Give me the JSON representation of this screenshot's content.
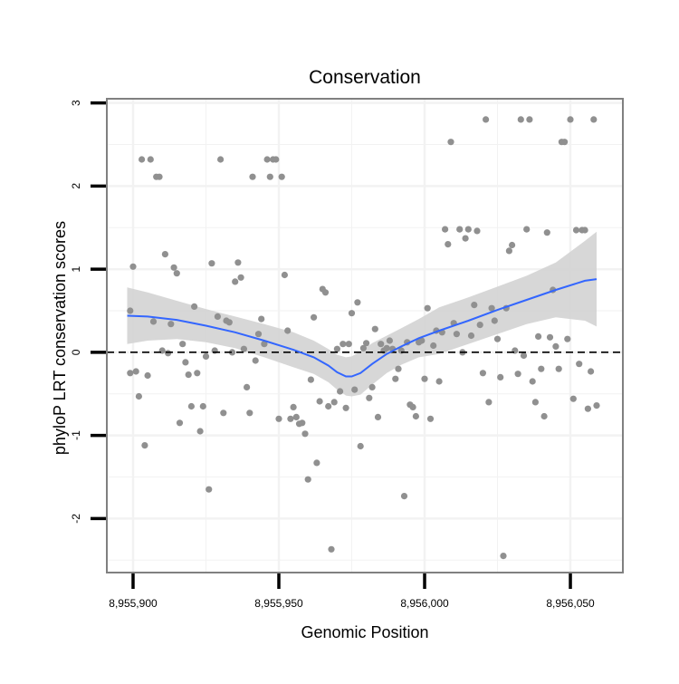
{
  "chart_data": {
    "type": "scatter",
    "title": "Conservation",
    "xlabel": "Genomic Position",
    "ylabel": "phyloP LRT conservation scores",
    "xlim": [
      8955891,
      8956068
    ],
    "ylim": [
      -2.65,
      3.05
    ],
    "x_ticks": [
      {
        "value": 8955900,
        "label": "8,955,900"
      },
      {
        "value": 8955950,
        "label": "8,955,950"
      },
      {
        "value": 8956000,
        "label": "8,956,000"
      },
      {
        "value": 8956050,
        "label": "8,956,050"
      }
    ],
    "y_ticks": [
      {
        "value": -2,
        "label": "-2"
      },
      {
        "value": -1,
        "label": "-1"
      },
      {
        "value": 0,
        "label": "0"
      },
      {
        "value": 1,
        "label": "1"
      },
      {
        "value": 2,
        "label": "2"
      },
      {
        "value": 3,
        "label": "3"
      }
    ],
    "x_minor_grid": [
      8955875,
      8955925,
      8955975,
      8956025,
      8956075
    ],
    "y_minor_grid": [
      -2.5,
      -1.5,
      -0.5,
      0.5,
      1.5,
      2.5
    ],
    "grid": true,
    "reference_line": {
      "y": 0,
      "style": "dashed"
    },
    "colors": {
      "points": "#909090",
      "smooth": "#3366FF",
      "ribbon": "#D3D3D3",
      "panel_border": "#808080",
      "grid": "#F2F2F2",
      "reference_line": "#000000"
    },
    "points": [
      [
        8955899,
        0.5
      ],
      [
        8955899,
        -0.25
      ],
      [
        8955900,
        1.03
      ],
      [
        8955901,
        -0.23
      ],
      [
        8955902,
        -0.53
      ],
      [
        8955903,
        2.32
      ],
      [
        8955904,
        -1.12
      ],
      [
        8955905,
        -0.28
      ],
      [
        8955906,
        2.32
      ],
      [
        8955907,
        0.37
      ],
      [
        8955908,
        2.11
      ],
      [
        8955909,
        2.11
      ],
      [
        8955910,
        0.02
      ],
      [
        8955911,
        1.18
      ],
      [
        8955912,
        -0.01
      ],
      [
        8955913,
        0.34
      ],
      [
        8955914,
        1.02
      ],
      [
        8955915,
        0.95
      ],
      [
        8955916,
        -0.85
      ],
      [
        8955917,
        0.1
      ],
      [
        8955918,
        -0.12
      ],
      [
        8955919,
        -0.27
      ],
      [
        8955920,
        -0.65
      ],
      [
        8955921,
        0.55
      ],
      [
        8955922,
        -0.25
      ],
      [
        8955923,
        -0.95
      ],
      [
        8955924,
        -0.65
      ],
      [
        8955925,
        -0.05
      ],
      [
        8955926,
        -1.65
      ],
      [
        8955927,
        1.07
      ],
      [
        8955928,
        0.02
      ],
      [
        8955929,
        0.43
      ],
      [
        8955930,
        2.32
      ],
      [
        8955931,
        -0.73
      ],
      [
        8955932,
        0.38
      ],
      [
        8955933,
        0.36
      ],
      [
        8955934,
        0.0
      ],
      [
        8955935,
        0.85
      ],
      [
        8955936,
        1.08
      ],
      [
        8955937,
        0.9
      ],
      [
        8955938,
        0.04
      ],
      [
        8955939,
        -0.42
      ],
      [
        8955940,
        -0.73
      ],
      [
        8955941,
        2.11
      ],
      [
        8955942,
        -0.1
      ],
      [
        8955943,
        0.22
      ],
      [
        8955944,
        0.4
      ],
      [
        8955945,
        0.1
      ],
      [
        8955946,
        2.32
      ],
      [
        8955947,
        2.11
      ],
      [
        8955948,
        2.32
      ],
      [
        8955949,
        2.32
      ],
      [
        8955950,
        -0.8
      ],
      [
        8955951,
        2.11
      ],
      [
        8955952,
        0.93
      ],
      [
        8955953,
        0.26
      ],
      [
        8955954,
        -0.8
      ],
      [
        8955955,
        -0.66
      ],
      [
        8955956,
        -0.78
      ],
      [
        8955957,
        -0.86
      ],
      [
        8955958,
        -0.85
      ],
      [
        8955959,
        -0.98
      ],
      [
        8955960,
        -1.53
      ],
      [
        8955961,
        -0.33
      ],
      [
        8955962,
        0.42
      ],
      [
        8955963,
        -1.33
      ],
      [
        8955964,
        -0.59
      ],
      [
        8955965,
        0.76
      ],
      [
        8955966,
        0.72
      ],
      [
        8955967,
        -0.65
      ],
      [
        8955968,
        -2.37
      ],
      [
        8955969,
        -0.6
      ],
      [
        8955970,
        0.04
      ],
      [
        8955971,
        -0.47
      ],
      [
        8955972,
        0.1
      ],
      [
        8955973,
        -0.67
      ],
      [
        8955974,
        0.1
      ],
      [
        8955975,
        0.47
      ],
      [
        8955976,
        -0.45
      ],
      [
        8955977,
        0.6
      ],
      [
        8955978,
        -1.13
      ],
      [
        8955979,
        0.05
      ],
      [
        8955980,
        0.11
      ],
      [
        8955981,
        -0.55
      ],
      [
        8955982,
        -0.42
      ],
      [
        8955983,
        0.28
      ],
      [
        8955984,
        -0.78
      ],
      [
        8955985,
        0.1
      ],
      [
        8955986,
        0.02
      ],
      [
        8955987,
        0.05
      ],
      [
        8955988,
        0.14
      ],
      [
        8955989,
        0.04
      ],
      [
        8955990,
        -0.32
      ],
      [
        8955991,
        -0.2
      ],
      [
        8955992,
        0.02
      ],
      [
        8955993,
        -1.73
      ],
      [
        8955994,
        0.12
      ],
      [
        8955995,
        -0.63
      ],
      [
        8955996,
        -0.66
      ],
      [
        8955997,
        -0.77
      ],
      [
        8955998,
        0.12
      ],
      [
        8955999,
        0.14
      ],
      [
        8956000,
        -0.32
      ],
      [
        8956001,
        0.53
      ],
      [
        8956002,
        -0.8
      ],
      [
        8956003,
        0.08
      ],
      [
        8956004,
        0.26
      ],
      [
        8956005,
        -0.35
      ],
      [
        8956006,
        0.24
      ],
      [
        8956007,
        1.48
      ],
      [
        8956008,
        1.3
      ],
      [
        8956009,
        2.53
      ],
      [
        8956010,
        0.35
      ],
      [
        8956011,
        0.22
      ],
      [
        8956012,
        1.48
      ],
      [
        8956013,
        0.0
      ],
      [
        8956014,
        1.37
      ],
      [
        8956015,
        1.48
      ],
      [
        8956016,
        0.2
      ],
      [
        8956017,
        0.57
      ],
      [
        8956018,
        1.46
      ],
      [
        8956019,
        0.33
      ],
      [
        8956020,
        -0.25
      ],
      [
        8956021,
        2.8
      ],
      [
        8956022,
        -0.6
      ],
      [
        8956023,
        0.53
      ],
      [
        8956024,
        0.38
      ],
      [
        8956025,
        0.16
      ],
      [
        8956026,
        -0.3
      ],
      [
        8956027,
        -2.45
      ],
      [
        8956028,
        0.53
      ],
      [
        8956029,
        1.22
      ],
      [
        8956030,
        1.29
      ],
      [
        8956031,
        0.02
      ],
      [
        8956032,
        -0.26
      ],
      [
        8956033,
        2.8
      ],
      [
        8956034,
        -0.04
      ],
      [
        8956035,
        1.48
      ],
      [
        8956036,
        2.8
      ],
      [
        8956037,
        -0.35
      ],
      [
        8956038,
        -0.6
      ],
      [
        8956039,
        0.19
      ],
      [
        8956040,
        -0.2
      ],
      [
        8956041,
        -0.77
      ],
      [
        8956042,
        1.44
      ],
      [
        8956043,
        0.18
      ],
      [
        8956044,
        0.75
      ],
      [
        8956045,
        0.07
      ],
      [
        8956046,
        -0.2
      ],
      [
        8956047,
        2.53
      ],
      [
        8956048,
        2.53
      ],
      [
        8956049,
        0.16
      ],
      [
        8956050,
        2.8
      ],
      [
        8956051,
        -0.56
      ],
      [
        8956052,
        1.47
      ],
      [
        8956053,
        -0.14
      ],
      [
        8956054,
        1.47
      ],
      [
        8956055,
        1.47
      ],
      [
        8956056,
        -0.68
      ],
      [
        8956057,
        -0.23
      ],
      [
        8956058,
        2.8
      ],
      [
        8956059,
        -0.64
      ]
    ],
    "smooth": [
      [
        8955898,
        0.44
      ],
      [
        8955905,
        0.43
      ],
      [
        8955915,
        0.39
      ],
      [
        8955925,
        0.32
      ],
      [
        8955935,
        0.24
      ],
      [
        8955945,
        0.14
      ],
      [
        8955955,
        0.03
      ],
      [
        8955962,
        -0.06
      ],
      [
        8955967,
        -0.16
      ],
      [
        8955970,
        -0.24
      ],
      [
        8955973,
        -0.29
      ],
      [
        8955975,
        -0.29
      ],
      [
        8955978,
        -0.25
      ],
      [
        8955982,
        -0.14
      ],
      [
        8955987,
        -0.02
      ],
      [
        8955992,
        0.07
      ],
      [
        8955998,
        0.17
      ],
      [
        8956005,
        0.26
      ],
      [
        8956015,
        0.38
      ],
      [
        8956025,
        0.51
      ],
      [
        8956035,
        0.63
      ],
      [
        8956045,
        0.75
      ],
      [
        8956055,
        0.86
      ],
      [
        8956059,
        0.88
      ]
    ],
    "ribbon_upper": [
      [
        8955898,
        0.78
      ],
      [
        8955905,
        0.72
      ],
      [
        8955915,
        0.62
      ],
      [
        8955925,
        0.52
      ],
      [
        8955935,
        0.43
      ],
      [
        8955945,
        0.34
      ],
      [
        8955955,
        0.24
      ],
      [
        8955962,
        0.14
      ],
      [
        8955967,
        0.04
      ],
      [
        8955970,
        -0.03
      ],
      [
        8955973,
        -0.06
      ],
      [
        8955975,
        -0.05
      ],
      [
        8955978,
        0.01
      ],
      [
        8955982,
        0.11
      ],
      [
        8955987,
        0.2
      ],
      [
        8955992,
        0.29
      ],
      [
        8955998,
        0.4
      ],
      [
        8956005,
        0.54
      ],
      [
        8956015,
        0.66
      ],
      [
        8956025,
        0.79
      ],
      [
        8956035,
        0.92
      ],
      [
        8956045,
        1.08
      ],
      [
        8956055,
        1.34
      ],
      [
        8956059,
        1.45
      ]
    ],
    "ribbon_lower": [
      [
        8955898,
        0.1
      ],
      [
        8955905,
        0.14
      ],
      [
        8955915,
        0.16
      ],
      [
        8955925,
        0.12
      ],
      [
        8955935,
        0.05
      ],
      [
        8955945,
        -0.06
      ],
      [
        8955955,
        -0.18
      ],
      [
        8955962,
        -0.26
      ],
      [
        8955967,
        -0.36
      ],
      [
        8955970,
        -0.45
      ],
      [
        8955973,
        -0.52
      ],
      [
        8955975,
        -0.53
      ],
      [
        8955978,
        -0.51
      ],
      [
        8955982,
        -0.39
      ],
      [
        8955987,
        -0.25
      ],
      [
        8955992,
        -0.15
      ],
      [
        8955998,
        -0.06
      ],
      [
        8956005,
        -0.02
      ],
      [
        8956015,
        0.1
      ],
      [
        8956025,
        0.22
      ],
      [
        8956035,
        0.34
      ],
      [
        8956045,
        0.42
      ],
      [
        8956055,
        0.38
      ],
      [
        8956059,
        0.31
      ]
    ]
  }
}
